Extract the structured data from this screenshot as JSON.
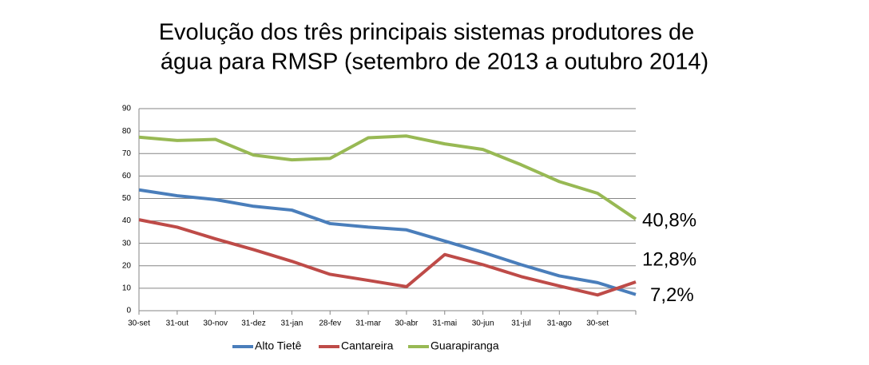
{
  "chart_data": {
    "type": "line",
    "title": [
      "Evolução dos três principais sistemas produtores de",
      "água para RMSP (setembro de 2013 a outubro 2014)"
    ],
    "categories": [
      "30-set",
      "31-out",
      "30-nov",
      "31-dez",
      "31-jan",
      "28-fev",
      "31-mar",
      "30-abr",
      "31-mai",
      "30-jun",
      "31-jul",
      "31-ago",
      "30-set",
      null
    ],
    "series": [
      {
        "name": "Alto Tietê",
        "color": "#4a7ebb",
        "values": [
          53.8,
          51.2,
          49.5,
          46.5,
          44.8,
          38.8,
          37.2,
          36,
          31,
          26,
          20.5,
          15.5,
          12.5,
          7.2
        ]
      },
      {
        "name": "Cantareira",
        "color": "#be4b48",
        "values": [
          40.5,
          37.2,
          32,
          27.2,
          22,
          16.2,
          13.5,
          10.7,
          25,
          20.5,
          15.2,
          11,
          7,
          12.8
        ]
      },
      {
        "name": "Guarapiranga",
        "color": "#98b954",
        "values": [
          77.3,
          75.8,
          76.3,
          69.3,
          67.2,
          67.8,
          77,
          77.8,
          74.3,
          71.8,
          65,
          57.5,
          52.3,
          40.8
        ]
      }
    ],
    "ylim": [
      0,
      90
    ],
    "yticks": [
      0,
      10,
      20,
      30,
      40,
      50,
      60,
      70,
      80,
      90
    ],
    "grid": true,
    "legend": "bottom",
    "annotations": [
      {
        "text": "40,8%",
        "color": "#77933c",
        "series": 2
      },
      {
        "text": "12,8%",
        "color": "#ff0000",
        "series": 1
      },
      {
        "text": "7,2%",
        "color": "#558ed5",
        "series": 0
      }
    ]
  }
}
